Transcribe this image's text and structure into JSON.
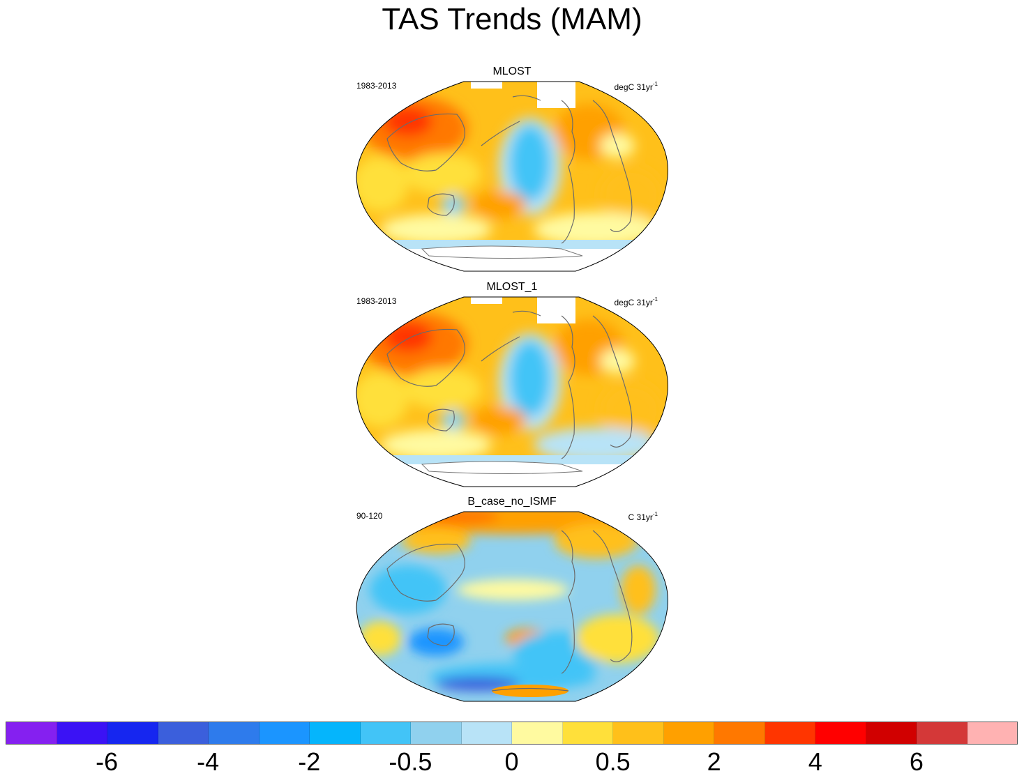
{
  "chart_data": {
    "type": "heatmap",
    "title": "TAS Trends (MAM)",
    "panels": [
      {
        "title": "MLOST",
        "left_label": "1983-2013",
        "right_label": "degC 31yr",
        "right_sup": "-1"
      },
      {
        "title": "MLOST_1",
        "left_label": "1983-2013",
        "right_label": "degC 31yr",
        "right_sup": "-1"
      },
      {
        "title": "B_case_no_ISMF",
        "left_label": "90-120",
        "right_label": "C 31yr",
        "right_sup": "-1"
      }
    ],
    "colorbar": {
      "colors": [
        "#8520f0",
        "#3b12f5",
        "#1626f0",
        "#3b5fdc",
        "#2e7bec",
        "#1b95ff",
        "#05b5fc",
        "#42c4f7",
        "#90d1ee",
        "#b8e3f7",
        "#fffaa0",
        "#ffe03a",
        "#ffc01a",
        "#ffa000",
        "#ff7800",
        "#ff3500",
        "#ff0000",
        "#d10000",
        "#d43838",
        "#ffb2b2"
      ],
      "tick_labels": [
        "-6",
        "-4",
        "-2",
        "-0.5",
        "0",
        "0.5",
        "2",
        "4",
        "6"
      ]
    }
  }
}
